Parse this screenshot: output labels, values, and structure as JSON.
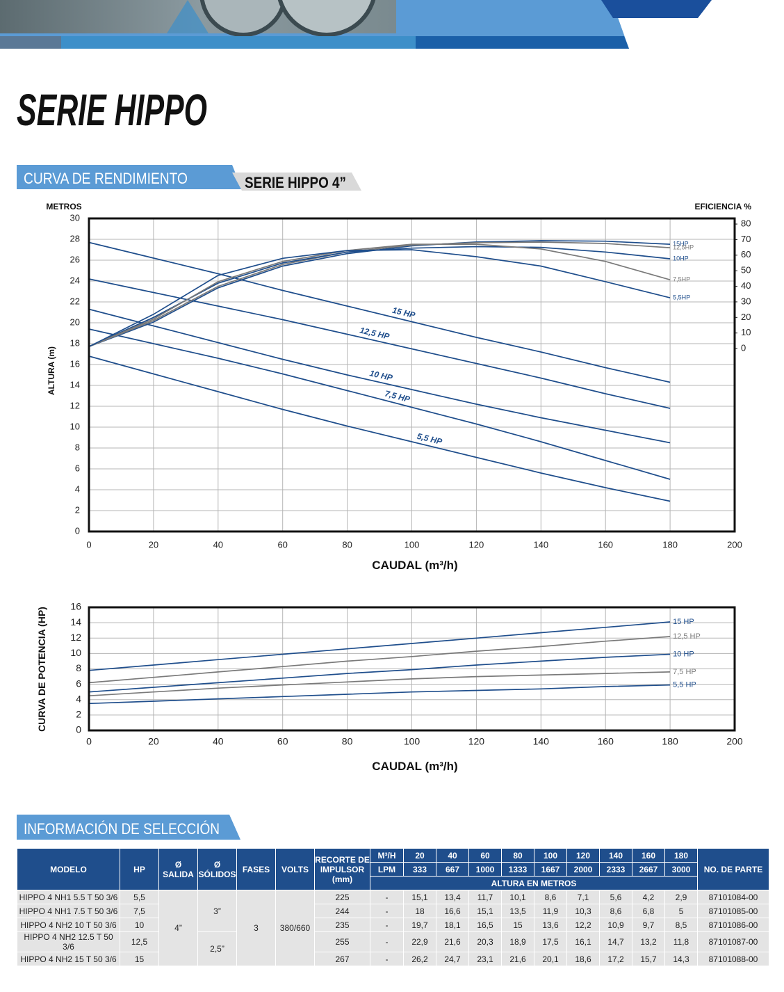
{
  "title": "SERIE HIPPO",
  "tabs": [
    "CURVA DE RENDIMIENTO",
    "SERIE HIPPO 4”"
  ],
  "chart_data": [
    {
      "type": "line",
      "ytitle": "METROS",
      "y2title": "EFICIENCIA %",
      "ylabel": "ALTURA (m)",
      "xlabel": "CAUDAL (m³/h)",
      "x": [
        0,
        20,
        40,
        60,
        80,
        100,
        120,
        140,
        160,
        180
      ],
      "xlim": [
        0,
        200
      ],
      "xticks": [
        0,
        20,
        40,
        60,
        80,
        100,
        120,
        140,
        160,
        180,
        200
      ],
      "ylim": [
        0,
        30
      ],
      "yticks": [
        0,
        2,
        4,
        6,
        8,
        10,
        12,
        14,
        16,
        18,
        20,
        22,
        24,
        26,
        28,
        30
      ],
      "y2lim": [
        -117.5,
        83.6
      ],
      "y2ticks": [
        0,
        10,
        20,
        30,
        40,
        50,
        60,
        70,
        80
      ],
      "grid": true,
      "series": [
        {
          "name": "15 HP",
          "color": "#1f4e8c",
          "values": [
            27.7,
            26.2,
            24.7,
            23.1,
            21.6,
            20.1,
            18.6,
            17.2,
            15.7,
            14.3
          ]
        },
        {
          "name": "12,5 HP",
          "color": "#1f4e8c",
          "values": [
            24.2,
            22.9,
            21.6,
            20.3,
            18.9,
            17.5,
            16.1,
            14.7,
            13.2,
            11.8
          ]
        },
        {
          "name": "10 HP",
          "color": "#1f4e8c",
          "values": [
            21.3,
            19.7,
            18.1,
            16.5,
            15,
            13.6,
            12.2,
            10.9,
            9.7,
            8.5
          ]
        },
        {
          "name": "7,5 HP",
          "color": "#1f4e8c",
          "values": [
            19.4,
            18,
            16.6,
            15.1,
            13.5,
            11.9,
            10.3,
            8.6,
            6.8,
            5
          ]
        },
        {
          "name": "5,5 HP",
          "color": "#1f4e8c",
          "values": [
            16.8,
            15.1,
            13.4,
            11.7,
            10.1,
            8.6,
            7.1,
            5.6,
            4.2,
            2.9
          ]
        },
        {
          "name": "15HP",
          "color": "#1f4e8c",
          "axis": "y2",
          "values": [
            1.3,
            17,
            39,
            53,
            61,
            66,
            68.5,
            69.3,
            69,
            67
          ]
        },
        {
          "name": "12,5HP",
          "color": "#7a7a7a",
          "axis": "y2",
          "values": [
            1.3,
            18,
            40,
            54,
            62,
            66.5,
            68,
            68.4,
            67.5,
            64.8
          ]
        },
        {
          "name": "10HP",
          "color": "#1f4e8c",
          "axis": "y2",
          "values": [
            1.3,
            20,
            42,
            55,
            62,
            64.5,
            65.5,
            65,
            62,
            57.7
          ]
        },
        {
          "name": "7,5HP",
          "color": "#7a7a7a",
          "axis": "y2",
          "values": [
            1.3,
            19,
            43,
            56,
            63,
            67,
            67,
            64,
            56,
            44.2
          ]
        },
        {
          "name": "5,5HP",
          "color": "#1f4e8c",
          "axis": "y2",
          "values": [
            1.3,
            22,
            47,
            58,
            63,
            63.5,
            59,
            53,
            43,
            32.6
          ]
        }
      ]
    },
    {
      "type": "line",
      "ylabel": "CURVA DE POTENCIA (HP)",
      "xlabel": "CAUDAL (m³/h)",
      "x": [
        0,
        20,
        40,
        60,
        80,
        100,
        120,
        140,
        160,
        180
      ],
      "xlim": [
        0,
        200
      ],
      "xticks": [
        0,
        20,
        40,
        60,
        80,
        100,
        120,
        140,
        160,
        180,
        200
      ],
      "ylim": [
        0,
        16
      ],
      "yticks": [
        0,
        2,
        4,
        6,
        8,
        10,
        12,
        14,
        16
      ],
      "grid": true,
      "series": [
        {
          "name": "15 HP",
          "color": "#1f4e8c",
          "values": [
            7.8,
            8.5,
            9.2,
            9.9,
            10.6,
            11.3,
            12,
            12.7,
            13.4,
            14.1
          ]
        },
        {
          "name": "12,5 HP",
          "color": "#7a7a7a",
          "values": [
            6.2,
            6.9,
            7.6,
            8.3,
            9,
            9.6,
            10.3,
            10.9,
            11.6,
            12.2
          ]
        },
        {
          "name": "10 HP",
          "color": "#1f4e8c",
          "values": [
            5,
            5.6,
            6.2,
            6.8,
            7.4,
            7.9,
            8.5,
            9,
            9.5,
            9.9
          ]
        },
        {
          "name": "7,5 HP",
          "color": "#7a7a7a",
          "values": [
            4.5,
            5,
            5.5,
            5.9,
            6.3,
            6.7,
            7,
            7.2,
            7.4,
            7.6
          ]
        },
        {
          "name": "5,5 HP",
          "color": "#1f4e8c",
          "values": [
            3.5,
            3.8,
            4.1,
            4.4,
            4.7,
            5,
            5.2,
            5.4,
            5.7,
            5.9
          ]
        }
      ]
    }
  ],
  "selection": {
    "title": "INFORMACIÓN DE SELECCIÓN",
    "table": {
      "columns": [
        "MODELO",
        "HP",
        "Ø SALIDA",
        "Ø SÓLIDOS",
        "FASES",
        "VOLTS",
        "RECORTE DE IMPULSOR (mm)",
        "NO. DE PARTE"
      ],
      "flow_units": [
        "M³/H",
        "LPM"
      ],
      "flow_m3h": [
        "20",
        "40",
        "60",
        "80",
        "100",
        "120",
        "140",
        "160",
        "180"
      ],
      "flow_lpm": [
        "333",
        "667",
        "1000",
        "1333",
        "1667",
        "2000",
        "2333",
        "2667",
        "3000"
      ],
      "height_header": "ALTURA EN METROS",
      "salida": "4”",
      "solidos": [
        "3”",
        "2,5”"
      ],
      "fases": "3",
      "volts": "380/660",
      "rows": [
        {
          "modelo": "HIPPO 4 NH1 5.5 T 50 3/6",
          "hp": "5,5",
          "recorte": "225",
          "flow": "-",
          "heights": [
            "15,1",
            "13,4",
            "11,7",
            "10,1",
            "8,6",
            "7,1",
            "5,6",
            "4,2",
            "2,9"
          ],
          "parte": "87101084-00"
        },
        {
          "modelo": "HIPPO 4 NH1 7.5 T 50 3/6",
          "hp": "7,5",
          "recorte": "244",
          "flow": "-",
          "heights": [
            "18",
            "16,6",
            "15,1",
            "13,5",
            "11,9",
            "10,3",
            "8,6",
            "6,8",
            "5"
          ],
          "parte": "87101085-00"
        },
        {
          "modelo": "HIPPO 4 NH2 10 T 50 3/6",
          "hp": "10",
          "recorte": "235",
          "flow": "-",
          "heights": [
            "19,7",
            "18,1",
            "16,5",
            "15",
            "13,6",
            "12,2",
            "10,9",
            "9,7",
            "8,5"
          ],
          "parte": "87101086-00"
        },
        {
          "modelo": "HIPPO 4 NH2 12.5 T 50 3/6",
          "hp": "12,5",
          "recorte": "255",
          "flow": "-",
          "heights": [
            "22,9",
            "21,6",
            "20,3",
            "18,9",
            "17,5",
            "16,1",
            "14,7",
            "13,2",
            "11,8"
          ],
          "parte": "87101087-00"
        },
        {
          "modelo": "HIPPO 4 NH2 15 T 50 3/6",
          "hp": "15",
          "recorte": "267",
          "flow": "-",
          "heights": [
            "26,2",
            "24,7",
            "23,1",
            "21,6",
            "20,1",
            "18,6",
            "17,2",
            "15,7",
            "14,3"
          ],
          "parte": "87101088-00"
        }
      ]
    }
  }
}
